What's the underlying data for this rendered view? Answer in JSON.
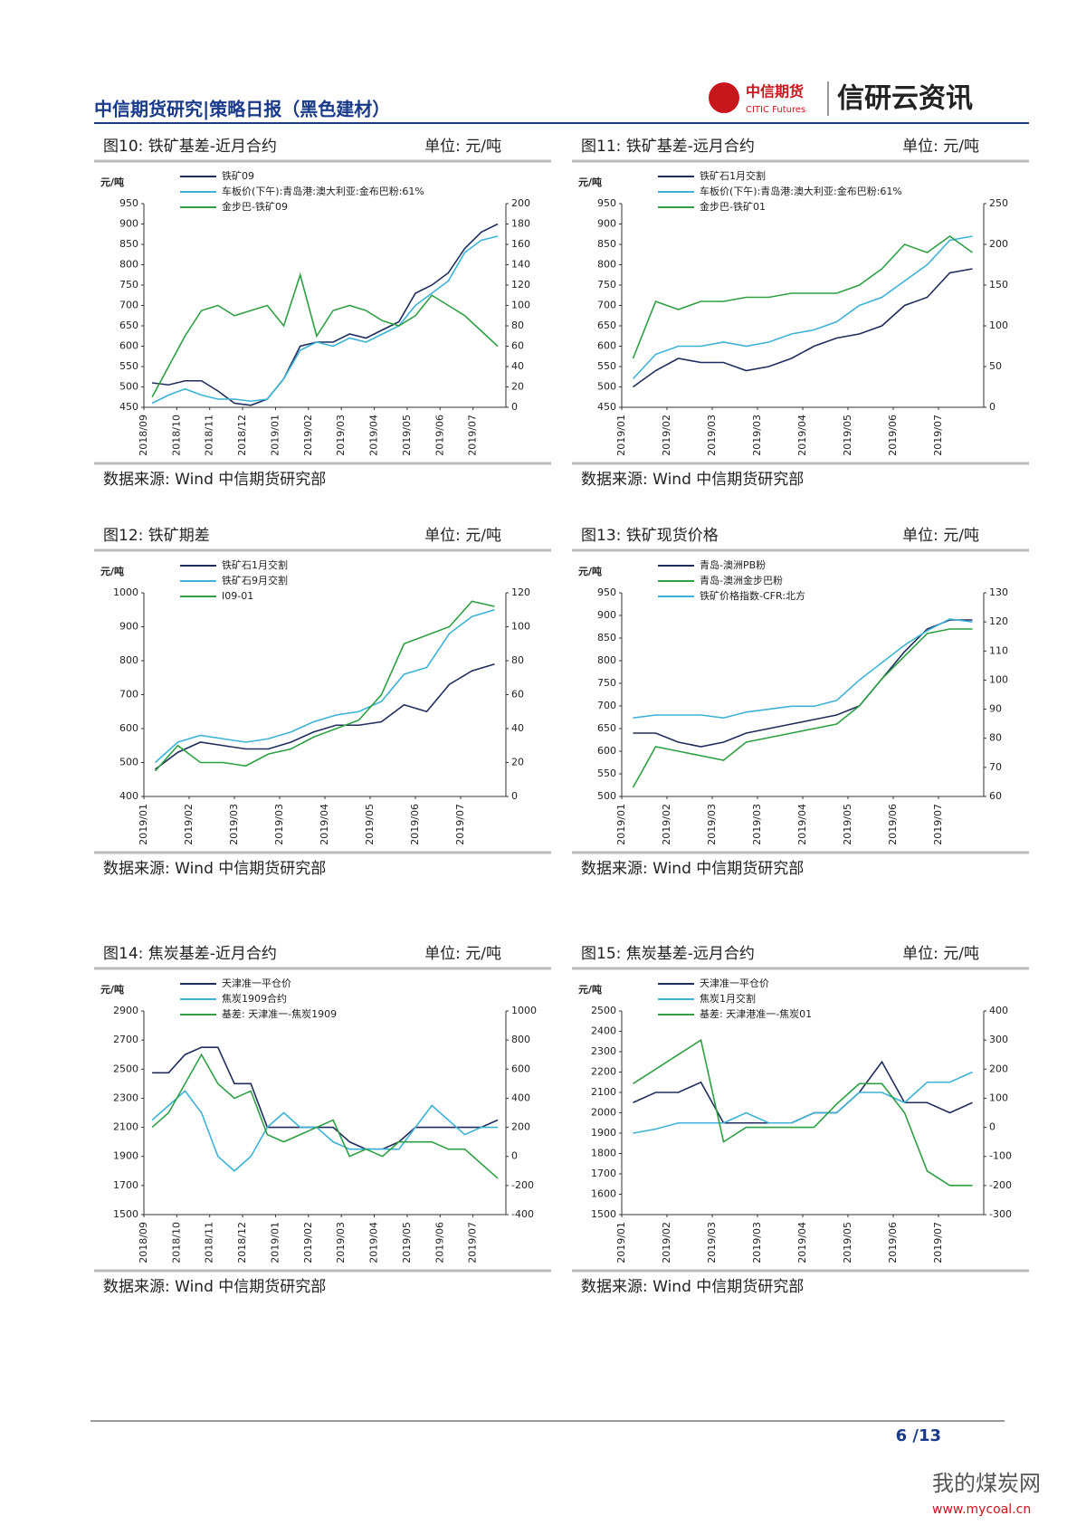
{
  "header": {
    "left": "中信期货研究|策略日报（黑色建材）",
    "logo": "中信期货",
    "logo_en": "CITIC Futures",
    "brand": "信研云资讯"
  },
  "footer": {
    "page": "6 /13"
  },
  "watermark": {
    "name": "我的煤炭网",
    "url": "www.mycoal.cn"
  },
  "chart_data": [
    {
      "type": "line",
      "title": "图10: 铁矿基差-近月合约",
      "unit": "单位: 元/吨",
      "source": "数据来源: Wind 中信期货研究部",
      "y_unit": "元/吨",
      "categories": [
        "2018/09",
        null,
        "2018/10",
        null,
        "2018/11",
        null,
        "2018/12",
        null,
        "2019/01",
        null,
        "2019/02",
        null,
        "2019/03",
        null,
        "2019/04",
        null,
        "2019/05",
        null,
        "2019/06",
        null,
        "2019/07",
        null
      ],
      "ylim": [
        450,
        950
      ],
      "yticks": [
        450,
        500,
        550,
        600,
        650,
        700,
        750,
        800,
        850,
        900,
        950
      ],
      "y2lim": [
        0,
        200
      ],
      "y2ticks": [
        0,
        20,
        40,
        60,
        80,
        100,
        120,
        140,
        160,
        180,
        200
      ],
      "series": [
        {
          "name": "铁矿09",
          "color": "#1f2d5c",
          "values": [
            510,
            505,
            515,
            515,
            490,
            460,
            455,
            470,
            520,
            600,
            610,
            610,
            630,
            620,
            640,
            660,
            730,
            750,
            780,
            840,
            880,
            900
          ]
        },
        {
          "name": "车板价(下午):青岛港:澳大利亚:金布巴粉:61%",
          "color": "#3db2d6",
          "values": [
            460,
            480,
            495,
            480,
            470,
            470,
            465,
            470,
            520,
            590,
            610,
            600,
            620,
            610,
            630,
            650,
            700,
            730,
            760,
            830,
            860,
            870
          ]
        },
        {
          "name": "金步巴-铁矿09",
          "color": "#2ea043",
          "axis": "y2",
          "values": [
            10,
            40,
            70,
            95,
            100,
            90,
            95,
            100,
            80,
            130,
            70,
            95,
            100,
            95,
            85,
            80,
            90,
            110,
            100,
            90,
            75,
            60
          ]
        }
      ]
    },
    {
      "type": "line",
      "title": "图11: 铁矿基差-远月合约",
      "unit": "单位: 元/吨",
      "source": "数据来源: Wind 中信期货研究部",
      "y_unit": "元/吨",
      "categories": [
        "2019/01",
        null,
        "2019/02",
        null,
        "2019/03",
        null,
        "2019/03",
        null,
        "2019/04",
        null,
        "2019/05",
        null,
        "2019/06",
        null,
        "2019/07",
        null
      ],
      "ylim": [
        450,
        950
      ],
      "yticks": [
        450,
        500,
        550,
        600,
        650,
        700,
        750,
        800,
        850,
        900,
        950
      ],
      "y2lim": [
        0,
        250
      ],
      "y2ticks": [
        0,
        50,
        100,
        150,
        200,
        250
      ],
      "series": [
        {
          "name": "铁矿石1月交割",
          "color": "#1f2d5c",
          "values": [
            500,
            540,
            570,
            560,
            560,
            540,
            550,
            570,
            600,
            620,
            630,
            650,
            700,
            720,
            780,
            790
          ]
        },
        {
          "name": "车板价(下午):青岛港:澳大利亚:金布巴粉:61%",
          "color": "#3db2d6",
          "values": [
            520,
            580,
            600,
            600,
            610,
            600,
            610,
            630,
            640,
            660,
            700,
            720,
            760,
            800,
            860,
            870
          ]
        },
        {
          "name": "金步巴-铁矿01",
          "color": "#2ea043",
          "axis": "y2",
          "values": [
            60,
            130,
            120,
            130,
            130,
            135,
            135,
            140,
            140,
            140,
            150,
            170,
            200,
            190,
            210,
            190
          ]
        }
      ]
    },
    {
      "type": "line",
      "title": "图12: 铁矿期差",
      "unit": "单位: 元/吨",
      "source": "数据来源: Wind 中信期货研究部",
      "y_unit": "元/吨",
      "categories": [
        "2019/01",
        null,
        "2019/02",
        null,
        "2019/03",
        null,
        "2019/03",
        null,
        "2019/04",
        null,
        "2019/05",
        null,
        "2019/06",
        null,
        "2019/07",
        null
      ],
      "ylim": [
        400,
        1000
      ],
      "yticks": [
        400,
        500,
        600,
        700,
        800,
        900,
        1000
      ],
      "y2lim": [
        0,
        120
      ],
      "y2ticks": [
        0,
        20,
        40,
        60,
        80,
        100,
        120
      ],
      "series": [
        {
          "name": "铁矿石1月交割",
          "color": "#1f2d5c",
          "values": [
            480,
            530,
            560,
            550,
            540,
            540,
            560,
            590,
            610,
            610,
            620,
            670,
            650,
            730,
            770,
            790
          ]
        },
        {
          "name": "铁矿石9月交割",
          "color": "#3db2d6",
          "values": [
            500,
            560,
            580,
            570,
            560,
            570,
            590,
            620,
            640,
            650,
            680,
            760,
            780,
            880,
            930,
            950
          ]
        },
        {
          "name": "I09-01",
          "color": "#2ea043",
          "axis": "y2",
          "values": [
            15,
            30,
            20,
            20,
            18,
            25,
            28,
            35,
            40,
            45,
            60,
            90,
            95,
            100,
            115,
            112
          ]
        }
      ]
    },
    {
      "type": "line",
      "title": "图13: 铁矿现货价格",
      "unit": "单位: 元/吨",
      "source": "数据来源: Wind 中信期货研究部",
      "y_unit": "元/吨",
      "categories": [
        "2019/01",
        null,
        "2019/02",
        null,
        "2019/03",
        null,
        "2019/03",
        null,
        "2019/04",
        null,
        "2019/05",
        null,
        "2019/06",
        null,
        "2019/07",
        null
      ],
      "ylim": [
        500,
        950
      ],
      "yticks": [
        500,
        550,
        600,
        650,
        700,
        750,
        800,
        850,
        900,
        950
      ],
      "y2lim": [
        60,
        130
      ],
      "y2ticks": [
        60,
        70,
        80,
        90,
        100,
        110,
        120,
        130
      ],
      "series": [
        {
          "name": "青岛-澳洲PB粉",
          "color": "#1f2d5c",
          "values": [
            640,
            640,
            620,
            610,
            620,
            640,
            650,
            660,
            670,
            680,
            700,
            760,
            820,
            870,
            890,
            890
          ]
        },
        {
          "name": "青岛-澳洲金步巴粉",
          "color": "#2ea043",
          "values": [
            520,
            610,
            600,
            590,
            580,
            620,
            630,
            640,
            650,
            660,
            700,
            760,
            810,
            860,
            870,
            870
          ]
        },
        {
          "name": "铁矿价格指数-CFR:北方",
          "color": "#3db2d6",
          "axis": "y2",
          "values": [
            87,
            88,
            88,
            88,
            87,
            89,
            90,
            91,
            91,
            93,
            100,
            106,
            112,
            117,
            121,
            120
          ]
        }
      ]
    },
    {
      "type": "line",
      "title": "图14: 焦炭基差-近月合约",
      "unit": "单位: 元/吨",
      "source": "数据来源: Wind 中信期货研究部",
      "y_unit": "元/吨",
      "categories": [
        "2018/09",
        null,
        "2018/10",
        null,
        "2018/11",
        null,
        "2018/12",
        null,
        "2019/01",
        null,
        "2019/02",
        null,
        "2019/03",
        null,
        "2019/04",
        null,
        "2019/05",
        null,
        "2019/06",
        null,
        "2019/07",
        null
      ],
      "ylim": [
        1500,
        2900
      ],
      "yticks": [
        1500,
        1700,
        1900,
        2100,
        2300,
        2500,
        2700,
        2900
      ],
      "y2lim": [
        -400,
        1000
      ],
      "y2ticks": [
        -400,
        -200,
        0,
        200,
        400,
        600,
        800,
        1000
      ],
      "series": [
        {
          "name": "天津准一平仓价",
          "color": "#1f2d5c",
          "values": [
            2475,
            2475,
            2600,
            2650,
            2650,
            2400,
            2400,
            2100,
            2100,
            2100,
            2100,
            2100,
            2000,
            1950,
            1950,
            2000,
            2100,
            2100,
            2100,
            2100,
            2100,
            2150
          ]
        },
        {
          "name": "焦炭1909合约",
          "color": "#3db2d6",
          "values": [
            2150,
            2250,
            2350,
            2200,
            1900,
            1800,
            1900,
            2100,
            2200,
            2100,
            2100,
            2000,
            1950,
            1950,
            1950,
            1950,
            2100,
            2250,
            2150,
            2050,
            2100,
            2100
          ]
        },
        {
          "name": "基差: 天津准一-焦炭1909",
          "color": "#2ea043",
          "axis": "y2",
          "values": [
            200,
            300,
            500,
            700,
            500,
            400,
            450,
            150,
            100,
            150,
            200,
            250,
            0,
            50,
            0,
            100,
            100,
            100,
            50,
            50,
            -50,
            -150
          ]
        }
      ]
    },
    {
      "type": "line",
      "title": "图15: 焦炭基差-远月合约",
      "unit": "单位: 元/吨",
      "source": "数据来源: Wind 中信期货研究部",
      "y_unit": "元/吨",
      "categories": [
        "2019/01",
        null,
        "2019/02",
        null,
        "2019/03",
        null,
        "2019/03",
        null,
        "2019/04",
        null,
        "2019/05",
        null,
        "2019/06",
        null,
        "2019/07",
        null
      ],
      "ylim": [
        1500,
        2500
      ],
      "yticks": [
        1500,
        1600,
        1700,
        1800,
        1900,
        2000,
        2100,
        2200,
        2300,
        2400,
        2500
      ],
      "y2lim": [
        -300,
        400
      ],
      "y2ticks": [
        -300,
        -200,
        -100,
        0,
        100,
        200,
        300,
        400
      ],
      "series": [
        {
          "name": "天津准一平仓价",
          "color": "#1f2d5c",
          "values": [
            2050,
            2100,
            2100,
            2150,
            1950,
            1950,
            1950,
            1950,
            2000,
            2000,
            2100,
            2250,
            2050,
            2050,
            2000,
            2050
          ]
        },
        {
          "name": "焦炭1月交割",
          "color": "#3db2d6",
          "values": [
            1900,
            1920,
            1950,
            1950,
            1950,
            2000,
            1950,
            1950,
            2000,
            2000,
            2100,
            2100,
            2050,
            2150,
            2150,
            2200
          ]
        },
        {
          "name": "基差: 天津港准一-焦炭01",
          "color": "#2ea043",
          "axis": "y2",
          "values": [
            150,
            200,
            250,
            300,
            -50,
            0,
            0,
            0,
            0,
            80,
            150,
            150,
            50,
            -150,
            -200,
            -200
          ]
        }
      ]
    }
  ]
}
